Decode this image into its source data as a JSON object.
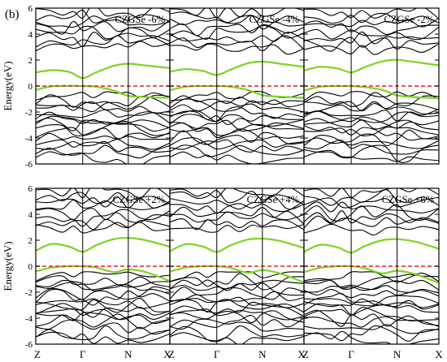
{
  "figure": {
    "panel_label": "(b)",
    "colors": {
      "bands": "#000000",
      "highlight_bands": "#7ed321",
      "fermi_level": "#e02020",
      "frame": "#000000"
    }
  },
  "chart_data": [
    {
      "type": "line",
      "title": "CZGSe -6%",
      "ylabel": "Energy(eV)",
      "ylim": [
        -6,
        6
      ],
      "yticks": [
        -6,
        -4,
        -2,
        0,
        2,
        4,
        6
      ],
      "kpath": [
        "Z",
        "Γ",
        "N",
        "X"
      ],
      "kpos": [
        0,
        0.35,
        0.69,
        1.0
      ],
      "fermi_level": 0,
      "grid": false,
      "series": [
        {
          "style": "highlight",
          "x": [
            0,
            0.12,
            0.25,
            0.35,
            0.45,
            0.58,
            0.69,
            0.82,
            1.0
          ],
          "values": [
            1.05,
            1.22,
            1.08,
            0.62,
            1.05,
            1.55,
            1.72,
            1.58,
            1.38
          ]
        },
        {
          "style": "highlight",
          "x": [
            0,
            0.12,
            0.25,
            0.35,
            0.45,
            0.58,
            0.69,
            0.82,
            1.0
          ],
          "values": [
            -0.3,
            -0.02,
            0.02,
            0.0,
            -0.05,
            -0.35,
            -0.75,
            -0.85,
            -0.9
          ]
        }
      ]
    },
    {
      "type": "line",
      "title": "CZGSe -4%",
      "ylabel": "Energy(eV)",
      "ylim": [
        -6,
        6
      ],
      "yticks": [
        -6,
        -4,
        -2,
        0,
        2,
        4,
        6
      ],
      "kpath": [
        "Z",
        "Γ",
        "N",
        "X"
      ],
      "kpos": [
        0,
        0.35,
        0.69,
        1.0
      ],
      "fermi_level": 0,
      "grid": false,
      "series": [
        {
          "style": "highlight",
          "x": [
            0,
            0.12,
            0.25,
            0.35,
            0.45,
            0.58,
            0.69,
            0.82,
            1.0
          ],
          "values": [
            1.1,
            1.3,
            1.15,
            0.85,
            1.25,
            1.75,
            1.88,
            1.72,
            1.48
          ]
        },
        {
          "style": "highlight",
          "x": [
            0,
            0.12,
            0.25,
            0.35,
            0.45,
            0.58,
            0.69,
            0.82,
            1.0
          ],
          "values": [
            -0.32,
            -0.05,
            0.0,
            0.0,
            -0.05,
            -0.3,
            -0.7,
            -0.82,
            -0.9
          ]
        }
      ]
    },
    {
      "type": "line",
      "title": "CZGSe -2%",
      "ylabel": "Energy(eV)",
      "ylim": [
        -6,
        6
      ],
      "yticks": [
        -6,
        -4,
        -2,
        0,
        2,
        4,
        6
      ],
      "kpath": [
        "Z",
        "Γ",
        "N",
        "X"
      ],
      "kpos": [
        0,
        0.35,
        0.69,
        1.0
      ],
      "fermi_level": 0,
      "grid": false,
      "series": [
        {
          "style": "highlight",
          "x": [
            0,
            0.12,
            0.25,
            0.35,
            0.45,
            0.58,
            0.69,
            0.82,
            1.0
          ],
          "values": [
            1.2,
            1.48,
            1.35,
            1.05,
            1.45,
            1.9,
            2.02,
            1.85,
            1.6
          ]
        },
        {
          "style": "highlight",
          "x": [
            0,
            0.12,
            0.25,
            0.35,
            0.45,
            0.58,
            0.69,
            0.82,
            1.0
          ],
          "values": [
            -0.35,
            -0.05,
            0.0,
            0.0,
            -0.08,
            -0.3,
            -0.72,
            -0.85,
            -0.95
          ]
        }
      ]
    },
    {
      "type": "line",
      "title": "CZGSe  +2%",
      "ylabel": "Energy(eV)",
      "ylim": [
        -6,
        6
      ],
      "yticks": [
        -6,
        -4,
        -2,
        0,
        2,
        4,
        6
      ],
      "kpath": [
        "Z",
        "Γ",
        "N",
        "X"
      ],
      "kpos": [
        0,
        0.35,
        0.69,
        1.0
      ],
      "fermi_level": 0,
      "grid": false,
      "series": [
        {
          "style": "highlight",
          "x": [
            0,
            0.12,
            0.25,
            0.35,
            0.45,
            0.58,
            0.69,
            0.82,
            1.0
          ],
          "values": [
            1.2,
            1.72,
            1.5,
            1.12,
            1.62,
            2.08,
            2.18,
            2.0,
            1.5
          ]
        },
        {
          "style": "highlight",
          "x": [
            0,
            0.12,
            0.25,
            0.35,
            0.45,
            0.58,
            0.69,
            0.82,
            1.0
          ],
          "values": [
            -0.4,
            -0.1,
            0.0,
            0.0,
            -0.1,
            -0.45,
            -0.25,
            -0.45,
            -1.15
          ]
        }
      ]
    },
    {
      "type": "line",
      "title": "CZGSe +4%",
      "ylabel": "Energy(eV)",
      "ylim": [
        -6,
        6
      ],
      "yticks": [
        -6,
        -4,
        -2,
        0,
        2,
        4,
        6
      ],
      "kpath": [
        "Z",
        "Γ",
        "N",
        "X"
      ],
      "kpos": [
        0,
        0.35,
        0.69,
        1.0
      ],
      "fermi_level": 0,
      "grid": false,
      "series": [
        {
          "style": "highlight",
          "x": [
            0,
            0.12,
            0.25,
            0.35,
            0.45,
            0.58,
            0.69,
            0.82,
            1.0
          ],
          "values": [
            1.15,
            1.7,
            1.5,
            1.1,
            1.6,
            2.05,
            2.12,
            1.95,
            1.4
          ]
        },
        {
          "style": "highlight",
          "x": [
            0,
            0.12,
            0.25,
            0.35,
            0.45,
            0.58,
            0.69,
            0.82,
            1.0
          ],
          "values": [
            -0.42,
            -0.1,
            0.0,
            0.0,
            -0.12,
            -0.5,
            -0.3,
            -0.55,
            -1.25
          ]
        }
      ]
    },
    {
      "type": "line",
      "title": "CZGSe +6%",
      "ylabel": "Energy(eV)",
      "ylim": [
        -6,
        6
      ],
      "yticks": [
        -6,
        -4,
        -2,
        0,
        2,
        4,
        6
      ],
      "kpath": [
        "Z",
        "Γ",
        "N",
        "X"
      ],
      "kpos": [
        0,
        0.35,
        0.69,
        1.0
      ],
      "fermi_level": 0,
      "grid": false,
      "series": [
        {
          "style": "highlight",
          "x": [
            0,
            0.12,
            0.25,
            0.35,
            0.45,
            0.58,
            0.69,
            0.82,
            1.0
          ],
          "values": [
            1.1,
            1.65,
            1.45,
            1.05,
            1.55,
            2.0,
            2.08,
            1.9,
            1.35
          ]
        },
        {
          "style": "highlight",
          "x": [
            0,
            0.12,
            0.25,
            0.35,
            0.45,
            0.58,
            0.69,
            0.82,
            1.0
          ],
          "values": [
            -0.45,
            -0.12,
            0.0,
            0.0,
            -0.15,
            -0.55,
            -0.35,
            -0.6,
            -1.3
          ]
        }
      ]
    }
  ]
}
